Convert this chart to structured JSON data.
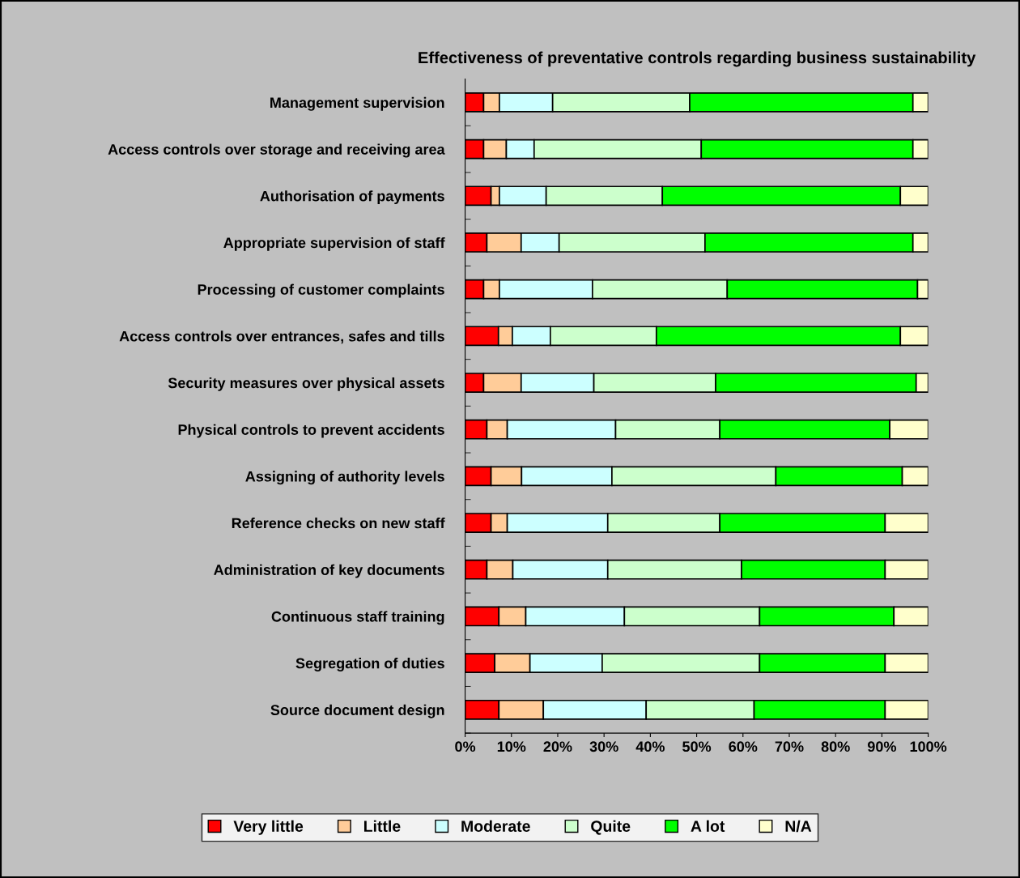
{
  "chart_data": {
    "type": "bar",
    "orientation": "horizontal",
    "stacked": true,
    "title": "Effectiveness of preventative controls regarding business sustainability",
    "categories": [
      "Management supervision",
      "Access controls over storage and receiving area",
      "Authorisation of payments",
      "Appropriate supervision of staff",
      "Processing of customer complaints",
      "Access controls over entrances, safes and tills",
      "Security measures over physical assets",
      "Physical controls to prevent accidents",
      "Assigning of authority levels",
      "Reference checks on new staff",
      "Administration of key documents",
      "Continuous staff training",
      "Segregation of duties",
      "Source document design"
    ],
    "series": [
      {
        "name": "Very little",
        "color": "#ff0000",
        "values": [
          4.0,
          4.0,
          5.6,
          4.7,
          4.0,
          7.2,
          4.0,
          4.7,
          5.6,
          5.6,
          4.7,
          7.3,
          6.4,
          7.3
        ]
      },
      {
        "name": "Little",
        "color": "#ffcc99",
        "values": [
          3.4,
          4.9,
          1.8,
          7.4,
          3.4,
          3.0,
          8.1,
          4.4,
          6.6,
          3.5,
          5.6,
          5.8,
          7.6,
          9.6
        ]
      },
      {
        "name": "Moderate",
        "color": "#ccffff",
        "values": [
          11.5,
          6.0,
          10.1,
          8.2,
          20.1,
          8.2,
          15.7,
          23.4,
          19.5,
          21.7,
          20.5,
          21.3,
          15.6,
          22.2
        ]
      },
      {
        "name": "Quite",
        "color": "#ccffcc",
        "values": [
          29.6,
          36.1,
          25.1,
          31.5,
          29.1,
          22.9,
          26.3,
          22.5,
          35.4,
          24.2,
          28.9,
          29.2,
          34.0,
          23.3
        ]
      },
      {
        "name": "A lot",
        "color": "#00ff00",
        "values": [
          48.2,
          45.7,
          51.4,
          44.9,
          41.1,
          52.7,
          43.3,
          36.7,
          27.3,
          35.7,
          31.0,
          29.0,
          27.1,
          28.3
        ]
      },
      {
        "name": "N/A",
        "color": "#ffffcc",
        "values": [
          3.3,
          3.3,
          6.0,
          3.3,
          2.3,
          6.0,
          2.6,
          8.3,
          5.6,
          9.3,
          9.3,
          7.4,
          9.3,
          9.3
        ]
      }
    ],
    "xlim": [
      0,
      100
    ],
    "xticks": [
      {
        "value": 0,
        "label": "0%"
      },
      {
        "value": 10,
        "label": "10%"
      },
      {
        "value": 20,
        "label": "20%"
      },
      {
        "value": 30,
        "label": "30%"
      },
      {
        "value": 40,
        "label": "40%"
      },
      {
        "value": 50,
        "label": "50%"
      },
      {
        "value": 60,
        "label": "60%"
      },
      {
        "value": 70,
        "label": "70%"
      },
      {
        "value": 80,
        "label": "80%"
      },
      {
        "value": 90,
        "label": "90%"
      },
      {
        "value": 100,
        "label": "100%"
      }
    ],
    "grid": false,
    "legend": "bottom"
  }
}
